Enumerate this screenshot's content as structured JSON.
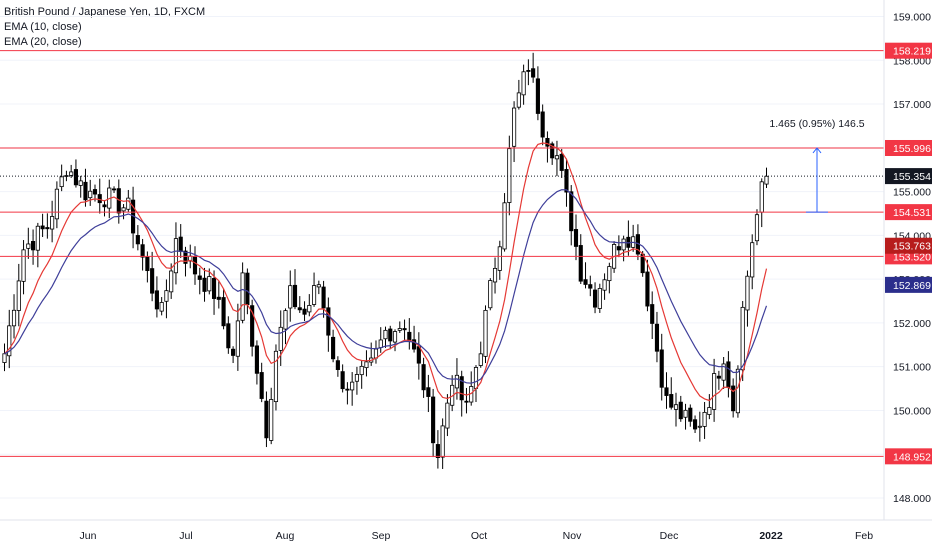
{
  "header": {
    "symbol_title": "British Pound / Japanese Yen, 1D, FXCM",
    "indicator_1": "EMA (10, close)",
    "indicator_2": "EMA (20, close)"
  },
  "colors": {
    "up": "#ffffff",
    "down": "#000000",
    "candle_border": "#000000",
    "ema10": "#e53935",
    "ema20": "#3f3f9a",
    "hline": "#f23645",
    "label_red": "#f23645",
    "label_dark_red": "#b71c1c",
    "label_blue": "#2b2e8c",
    "last_price_label": "#131722",
    "axis_text": "#131722"
  },
  "chart_data": {
    "type": "candlestick",
    "title": "British Pound / Japanese Yen, 1D, FXCM",
    "ylim": [
      147.5,
      159.3
    ],
    "y_ticks": [
      "148.000",
      "149.000",
      "150.000",
      "151.000",
      "152.000",
      "153.000",
      "154.000",
      "155.000",
      "156.000",
      "157.000",
      "158.000",
      "159.000"
    ],
    "x_tick_labels": [
      "Jun",
      "Jul",
      "Aug",
      "Sep",
      "Oct",
      "Nov",
      "Dec",
      "2022",
      "Feb"
    ],
    "horizontal_levels": [
      {
        "value": 158.219,
        "label": "158.219"
      },
      {
        "value": 155.996,
        "label": "155.996"
      },
      {
        "value": 154.531,
        "label": "154.531"
      },
      {
        "value": 153.52,
        "label": "153.520"
      },
      {
        "value": 148.952,
        "label": "148.952"
      }
    ],
    "last_price": {
      "value": 155.354,
      "label": "155.354"
    },
    "ema_labels": [
      {
        "series": "EMA (10, close)",
        "value": 153.763,
        "label": "153.763"
      },
      {
        "series": "EMA (20, close)",
        "value": 152.869,
        "label": "152.869"
      }
    ],
    "measure": {
      "from": 154.531,
      "to": 155.996,
      "label": "1.465 (0.95%) 146.5"
    },
    "anchors": [
      {
        "i": 0,
        "p": 151.3
      },
      {
        "i": 4,
        "p": 153.7
      },
      {
        "i": 9,
        "p": 154.2
      },
      {
        "i": 13,
        "p": 155.6
      },
      {
        "i": 17,
        "p": 155.0
      },
      {
        "i": 21,
        "p": 154.9
      },
      {
        "i": 26,
        "p": 154.6
      },
      {
        "i": 30,
        "p": 153.1
      },
      {
        "i": 33,
        "p": 152.2
      },
      {
        "i": 36,
        "p": 153.9
      },
      {
        "i": 40,
        "p": 153.2
      },
      {
        "i": 44,
        "p": 152.7
      },
      {
        "i": 48,
        "p": 151.2
      },
      {
        "i": 50,
        "p": 153.0
      },
      {
        "i": 53,
        "p": 151.0
      },
      {
        "i": 55,
        "p": 149.6
      },
      {
        "i": 57,
        "p": 151.4
      },
      {
        "i": 60,
        "p": 152.6
      },
      {
        "i": 63,
        "p": 152.2
      },
      {
        "i": 66,
        "p": 152.9
      },
      {
        "i": 70,
        "p": 150.8
      },
      {
        "i": 73,
        "p": 150.5
      },
      {
        "i": 77,
        "p": 151.0
      },
      {
        "i": 80,
        "p": 151.8
      },
      {
        "i": 84,
        "p": 152.0
      },
      {
        "i": 88,
        "p": 150.6
      },
      {
        "i": 91,
        "p": 149.0
      },
      {
        "i": 94,
        "p": 150.8
      },
      {
        "i": 97,
        "p": 150.0
      },
      {
        "i": 100,
        "p": 151.5
      },
      {
        "i": 104,
        "p": 154.0
      },
      {
        "i": 107,
        "p": 156.8
      },
      {
        "i": 110,
        "p": 157.9
      },
      {
        "i": 113,
        "p": 156.5
      },
      {
        "i": 116,
        "p": 155.8
      },
      {
        "i": 119,
        "p": 154.3
      },
      {
        "i": 121,
        "p": 153.2
      },
      {
        "i": 124,
        "p": 152.6
      },
      {
        "i": 127,
        "p": 153.4
      },
      {
        "i": 130,
        "p": 154.1
      },
      {
        "i": 133,
        "p": 153.8
      },
      {
        "i": 136,
        "p": 152.0
      },
      {
        "i": 139,
        "p": 150.2
      },
      {
        "i": 142,
        "p": 149.9
      },
      {
        "i": 145,
        "p": 149.5
      },
      {
        "i": 148,
        "p": 150.3
      },
      {
        "i": 151,
        "p": 151.3
      },
      {
        "i": 153,
        "p": 150.1
      },
      {
        "i": 155,
        "p": 152.3
      },
      {
        "i": 157,
        "p": 153.9
      },
      {
        "i": 159,
        "p": 155.0
      },
      {
        "i": 160,
        "p": 155.35
      }
    ]
  }
}
